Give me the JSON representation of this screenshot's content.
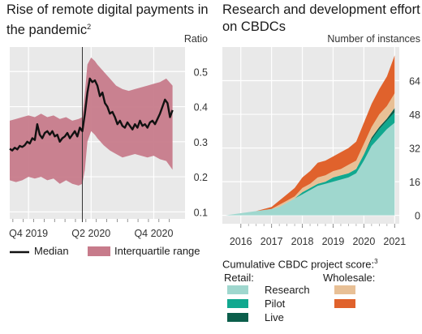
{
  "chart_data": [
    {
      "type": "line",
      "title": "Rise of remote digital payments in the pandemic",
      "title_footnote": "2",
      "ylabel": "Ratio",
      "ylim": [
        0.08,
        0.57
      ],
      "yticks": [
        "0.1",
        "0.2",
        "0.3",
        "0.4",
        "0.5"
      ],
      "xticks": [
        "Q4 2019",
        "Q2 2020",
        "Q4 2020"
      ],
      "xtick_positions": [
        2019.75,
        2020.25,
        2020.75
      ],
      "xlim": [
        2019.6,
        2021.0
      ],
      "event_line_x": 2020.18,
      "grid": true,
      "series": [
        {
          "name": "Median",
          "color": "#111111",
          "x": [
            2019.6,
            2019.62,
            2019.64,
            2019.66,
            2019.68,
            2019.7,
            2019.72,
            2019.74,
            2019.76,
            2019.78,
            2019.8,
            2019.82,
            2019.84,
            2019.86,
            2019.88,
            2019.9,
            2019.92,
            2019.94,
            2019.96,
            2019.98,
            2020.0,
            2020.02,
            2020.04,
            2020.06,
            2020.08,
            2020.1,
            2020.12,
            2020.14,
            2020.16,
            2020.18,
            2020.2,
            2020.22,
            2020.24,
            2020.26,
            2020.28,
            2020.3,
            2020.32,
            2020.34,
            2020.36,
            2020.38,
            2020.4,
            2020.42,
            2020.44,
            2020.46,
            2020.48,
            2020.5,
            2020.52,
            2020.54,
            2020.56,
            2020.58,
            2020.6,
            2020.62,
            2020.64,
            2020.66,
            2020.68,
            2020.7,
            2020.72,
            2020.74,
            2020.76,
            2020.78,
            2020.8,
            2020.82,
            2020.84,
            2020.86,
            2020.88,
            2020.9
          ],
          "values": [
            0.28,
            0.275,
            0.283,
            0.278,
            0.288,
            0.285,
            0.29,
            0.3,
            0.295,
            0.31,
            0.305,
            0.35,
            0.32,
            0.31,
            0.325,
            0.33,
            0.32,
            0.33,
            0.315,
            0.32,
            0.3,
            0.31,
            0.315,
            0.325,
            0.31,
            0.32,
            0.33,
            0.315,
            0.34,
            0.33,
            0.38,
            0.44,
            0.48,
            0.47,
            0.475,
            0.46,
            0.43,
            0.44,
            0.41,
            0.4,
            0.38,
            0.385,
            0.37,
            0.35,
            0.36,
            0.345,
            0.34,
            0.355,
            0.345,
            0.335,
            0.35,
            0.34,
            0.36,
            0.345,
            0.35,
            0.34,
            0.355,
            0.36,
            0.35,
            0.365,
            0.38,
            0.4,
            0.42,
            0.41,
            0.37,
            0.39
          ]
        },
        {
          "name": "Interquartile range",
          "color": "#c77b8b",
          "x": [
            2019.6,
            2019.65,
            2019.7,
            2019.75,
            2019.8,
            2019.85,
            2019.9,
            2019.95,
            2020.0,
            2020.05,
            2020.1,
            2020.15,
            2020.18,
            2020.2,
            2020.22,
            2020.25,
            2020.28,
            2020.3,
            2020.35,
            2020.4,
            2020.45,
            2020.5,
            2020.55,
            2020.6,
            2020.65,
            2020.7,
            2020.75,
            2020.8,
            2020.85,
            2020.9
          ],
          "lower": [
            0.19,
            0.185,
            0.19,
            0.2,
            0.195,
            0.2,
            0.19,
            0.195,
            0.18,
            0.19,
            0.18,
            0.175,
            0.18,
            0.22,
            0.3,
            0.33,
            0.32,
            0.31,
            0.29,
            0.275,
            0.265,
            0.255,
            0.26,
            0.265,
            0.26,
            0.255,
            0.26,
            0.25,
            0.245,
            0.22
          ],
          "upper": [
            0.36,
            0.365,
            0.37,
            0.375,
            0.37,
            0.38,
            0.37,
            0.375,
            0.365,
            0.37,
            0.36,
            0.365,
            0.37,
            0.44,
            0.52,
            0.54,
            0.53,
            0.52,
            0.5,
            0.48,
            0.46,
            0.45,
            0.445,
            0.45,
            0.455,
            0.46,
            0.465,
            0.47,
            0.48,
            0.46
          ]
        }
      ]
    },
    {
      "type": "area",
      "stacked": true,
      "title": "Research and development effort on CBDCs",
      "ylabel": "Number of instances",
      "ylim": [
        -4,
        80
      ],
      "yticks": [
        "0",
        "16",
        "32",
        "48",
        "64"
      ],
      "xticks": [
        "2016",
        "2017",
        "2018",
        "2019",
        "2020",
        "2021"
      ],
      "xlim": [
        2015.4,
        2021.15
      ],
      "grid": true,
      "x": [
        2015.5,
        2016.0,
        2016.5,
        2017.0,
        2017.25,
        2017.5,
        2017.75,
        2018.0,
        2018.25,
        2018.5,
        2018.75,
        2019.0,
        2019.25,
        2019.5,
        2019.75,
        2020.0,
        2020.25,
        2020.5,
        2020.75,
        2021.0
      ],
      "series": [
        {
          "name": "Research",
          "group": "Retail",
          "color": "#9fd7ce",
          "values": [
            0,
            1,
            2,
            3,
            4,
            6,
            8,
            10,
            12,
            14,
            15,
            16,
            17,
            18,
            20,
            26,
            33,
            37,
            41,
            44
          ]
        },
        {
          "name": "Pilot",
          "group": "Retail",
          "color": "#11a88f",
          "values": [
            0,
            0,
            0,
            0,
            0,
            0,
            0,
            1,
            1,
            1,
            1,
            2,
            2,
            2,
            2,
            3,
            3,
            4,
            4,
            5
          ]
        },
        {
          "name": "Live",
          "group": "Retail",
          "color": "#0b5e4b",
          "values": [
            0,
            0,
            0,
            0,
            0,
            0,
            0,
            0,
            0,
            0,
            0,
            0,
            0,
            0,
            0,
            0,
            1,
            1,
            1,
            2
          ]
        },
        {
          "name": "",
          "group": "Wholesale",
          "color": "#e8c096",
          "values": [
            0,
            0,
            0,
            0,
            1,
            1,
            1,
            2,
            2,
            3,
            3,
            3,
            3,
            4,
            4,
            5,
            5,
            6,
            6,
            7
          ]
        },
        {
          "name": "",
          "group": "Wholesale",
          "color": "#e0622c",
          "values": [
            0,
            0,
            0,
            1,
            2,
            3,
            4,
            5,
            6,
            7,
            7,
            7,
            8,
            8,
            9,
            10,
            11,
            12,
            14,
            18
          ]
        }
      ]
    }
  ],
  "legend_left": {
    "median": "Median",
    "iqr": "Interquartile range"
  },
  "legend_right": {
    "heading": "Cumulative CBDC project score:",
    "heading_footnote": "3",
    "retail_label": "Retail:",
    "wholesale_label": "Wholesale:",
    "research": "Research",
    "pilot": "Pilot",
    "live": "Live"
  }
}
